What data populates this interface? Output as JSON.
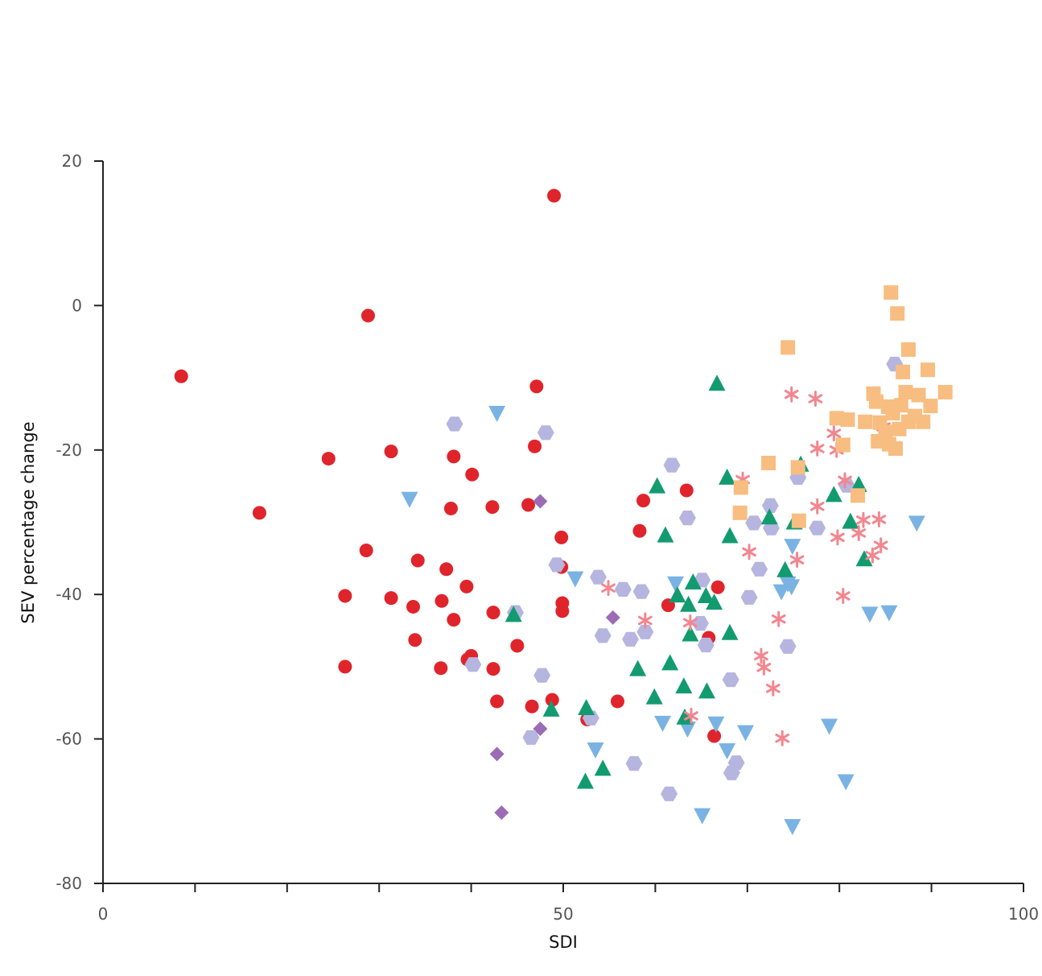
{
  "chart_data": {
    "type": "scatter",
    "title": "",
    "xlabel": "SDI",
    "ylabel": "SEV percentage change",
    "xlim": [
      0,
      100
    ],
    "ylim": [
      -80,
      20
    ],
    "x_tick_labels": [
      "0",
      "50",
      "100"
    ],
    "y_tick_labels": [
      "20",
      "0",
      "-20",
      "-40",
      "-60",
      "-80"
    ],
    "grid": false,
    "legend": "none",
    "series": [
      {
        "marker": "circle",
        "color": "#e0242b",
        "points": [
          [
            8.5,
            -9.8
          ],
          [
            17,
            -28.7
          ],
          [
            24.5,
            -21.2
          ],
          [
            26.3,
            -40.2
          ],
          [
            26.3,
            -50
          ],
          [
            28.6,
            -33.9
          ],
          [
            28.8,
            -1.4
          ],
          [
            31.3,
            -20.2
          ],
          [
            31.3,
            -40.5
          ],
          [
            33.7,
            -41.7
          ],
          [
            33.9,
            -46.3
          ],
          [
            34.2,
            -35.3
          ],
          [
            36.7,
            -50.2
          ],
          [
            36.8,
            -40.9
          ],
          [
            37.3,
            -36.5
          ],
          [
            37.8,
            -28.1
          ],
          [
            38.1,
            -20.9
          ],
          [
            38.1,
            -43.5
          ],
          [
            39.5,
            -38.9
          ],
          [
            39.6,
            -49
          ],
          [
            40,
            -48.5
          ],
          [
            40.1,
            -23.4
          ],
          [
            42.3,
            -27.9
          ],
          [
            42.4,
            -50.3
          ],
          [
            42.4,
            -42.5
          ],
          [
            42.8,
            -54.8
          ],
          [
            45,
            -47.1
          ],
          [
            46.2,
            -27.6
          ],
          [
            46.6,
            -55.5
          ],
          [
            46.9,
            -19.5
          ],
          [
            47.1,
            -11.2
          ],
          [
            48.8,
            -54.6
          ],
          [
            49,
            15.2
          ],
          [
            49.8,
            -32.1
          ],
          [
            49.8,
            -36.2
          ],
          [
            49.9,
            -41.2
          ],
          [
            49.9,
            -42.3
          ],
          [
            52.6,
            -57.3
          ],
          [
            55.9,
            -54.8
          ],
          [
            58.3,
            -31.2
          ],
          [
            58.7,
            -27
          ],
          [
            61.4,
            -41.5
          ],
          [
            63.4,
            -25.6
          ],
          [
            65.8,
            -46
          ],
          [
            66.4,
            -59.6
          ],
          [
            66.8,
            -39
          ]
        ]
      },
      {
        "marker": "diamond",
        "color": "#9b6bb5",
        "points": [
          [
            42.8,
            -62.1
          ],
          [
            43.3,
            -70.2
          ],
          [
            47.5,
            -27.1
          ],
          [
            47.5,
            -58.6
          ],
          [
            55.4,
            -43.2
          ]
        ]
      },
      {
        "marker": "hexagon",
        "color": "#b5b5e0",
        "points": [
          [
            38.2,
            -16.4
          ],
          [
            40.2,
            -49.7
          ],
          [
            44.8,
            -42.5
          ],
          [
            46.5,
            -59.8
          ],
          [
            47.7,
            -51.2
          ],
          [
            48.1,
            -17.6
          ],
          [
            49.3,
            -35.9
          ],
          [
            53,
            -57.1
          ],
          [
            53.8,
            -37.6
          ],
          [
            54.3,
            -45.7
          ],
          [
            56.5,
            -39.3
          ],
          [
            57.3,
            -46.2
          ],
          [
            57.7,
            -63.4
          ],
          [
            58.5,
            -39.6
          ],
          [
            58.9,
            -45.2
          ],
          [
            61.5,
            -67.6
          ],
          [
            61.8,
            -22.1
          ],
          [
            63.5,
            -29.4
          ],
          [
            64.9,
            -44
          ],
          [
            65.1,
            -38
          ],
          [
            65.5,
            -47
          ],
          [
            68.2,
            -51.8
          ],
          [
            68.3,
            -64.7
          ],
          [
            68.8,
            -63.3
          ],
          [
            70.2,
            -40.4
          ],
          [
            70.7,
            -30.1
          ],
          [
            71.3,
            -36.5
          ],
          [
            72.5,
            -27.7
          ],
          [
            72.6,
            -30.8
          ],
          [
            74.4,
            -47.2
          ],
          [
            75.5,
            -23.8
          ],
          [
            77.6,
            -30.8
          ],
          [
            80.8,
            -24.9
          ],
          [
            86,
            -8.1
          ]
        ]
      },
      {
        "marker": "triangle-down",
        "color": "#7ab3e3",
        "points": [
          [
            33.3,
            -26.8
          ],
          [
            42.8,
            -14.9
          ],
          [
            51.3,
            -37.8
          ],
          [
            53.5,
            -61.5
          ],
          [
            60.8,
            -57.8
          ],
          [
            62.2,
            -38.5
          ],
          [
            63.5,
            -58.6
          ],
          [
            65.1,
            -70.6
          ],
          [
            66.6,
            -57.9
          ],
          [
            67.8,
            -61.6
          ],
          [
            69.8,
            -59.1
          ],
          [
            73.7,
            -39.6
          ],
          [
            74.4,
            -38.5
          ],
          [
            74.8,
            -38.9
          ],
          [
            74.9,
            -33.3
          ],
          [
            74.9,
            -72.1
          ],
          [
            78.9,
            -58.2
          ],
          [
            80.7,
            -65.9
          ],
          [
            83.3,
            -42.7
          ],
          [
            85.4,
            -42.5
          ],
          [
            88.4,
            -30.1
          ]
        ]
      },
      {
        "marker": "triangle-up",
        "color": "#139b70",
        "points": [
          [
            44.6,
            -42.8
          ],
          [
            48.7,
            -55.9
          ],
          [
            52.4,
            -65.9
          ],
          [
            52.5,
            -55.7
          ],
          [
            54.3,
            -64.1
          ],
          [
            58.1,
            -50.3
          ],
          [
            59.9,
            -54.2
          ],
          [
            60.2,
            -25
          ],
          [
            61.1,
            -31.8
          ],
          [
            61.6,
            -49.5
          ],
          [
            62.4,
            -40.1
          ],
          [
            63.1,
            -52.7
          ],
          [
            63.2,
            -57
          ],
          [
            63.6,
            -41.4
          ],
          [
            63.8,
            -45.5
          ],
          [
            64.1,
            -38.3
          ],
          [
            65.5,
            -40.2
          ],
          [
            65.6,
            -53.4
          ],
          [
            66.4,
            -41.1
          ],
          [
            66.7,
            -10.8
          ],
          [
            67.8,
            -23.8
          ],
          [
            68.1,
            -31.9
          ],
          [
            68.1,
            -45.3
          ],
          [
            72.4,
            -29.3
          ],
          [
            74.1,
            -36.6
          ],
          [
            75.1,
            -30
          ],
          [
            75.8,
            -22
          ],
          [
            79.4,
            -26.2
          ],
          [
            81.2,
            -29.9
          ],
          [
            82.1,
            -24.8
          ],
          [
            82.7,
            -35.1
          ]
        ]
      },
      {
        "marker": "asterisk",
        "color": "#f2868f",
        "points": [
          [
            54.9,
            -39.1
          ],
          [
            58.9,
            -43.6
          ],
          [
            63.8,
            -43.9
          ],
          [
            63.9,
            -56.8
          ],
          [
            69.5,
            -24.1
          ],
          [
            70.2,
            -34.1
          ],
          [
            71.5,
            -48.5
          ],
          [
            71.8,
            -50.1
          ],
          [
            72.8,
            -53
          ],
          [
            73.4,
            -43.4
          ],
          [
            73.8,
            -59.9
          ],
          [
            74.8,
            -12.3
          ],
          [
            75.4,
            -35.2
          ],
          [
            77.4,
            -12.9
          ],
          [
            77.6,
            -19.8
          ],
          [
            77.6,
            -27.8
          ],
          [
            79.4,
            -17.7
          ],
          [
            79.7,
            -20
          ],
          [
            79.8,
            -32.1
          ],
          [
            80.4,
            -40.2
          ],
          [
            80.6,
            -24.2
          ],
          [
            82.1,
            -31.5
          ],
          [
            82.6,
            -29.7
          ],
          [
            83.6,
            -34.6
          ],
          [
            84.3,
            -29.6
          ],
          [
            84.5,
            -33.2
          ],
          [
            84.8,
            -16.8
          ]
        ]
      },
      {
        "marker": "square",
        "color": "#f8bd80",
        "points": [
          [
            69.2,
            -28.7
          ],
          [
            69.3,
            -25.2
          ],
          [
            72.3,
            -21.8
          ],
          [
            74.4,
            -5.8
          ],
          [
            75.5,
            -22.4
          ],
          [
            75.6,
            -29.8
          ],
          [
            79.7,
            -15.6
          ],
          [
            80.4,
            -19.3
          ],
          [
            80.9,
            -15.8
          ],
          [
            82,
            -26.3
          ],
          [
            82.8,
            -16.1
          ],
          [
            83.7,
            -12.2
          ],
          [
            84,
            -13.3
          ],
          [
            84.2,
            -18.8
          ],
          [
            84.4,
            -16.2
          ],
          [
            85,
            -17.5
          ],
          [
            85.3,
            -14
          ],
          [
            85.4,
            -19.2
          ],
          [
            85.6,
            1.8
          ],
          [
            85.8,
            -14.9
          ],
          [
            86.1,
            -19.8
          ],
          [
            86.3,
            -1.1
          ],
          [
            86.5,
            -17.1
          ],
          [
            86.7,
            -13.8
          ],
          [
            86.9,
            -9.2
          ],
          [
            87.2,
            -12
          ],
          [
            87.5,
            -6.1
          ],
          [
            87.5,
            -16.1
          ],
          [
            88.2,
            -15.3
          ],
          [
            88.6,
            -12.4
          ],
          [
            89.1,
            -16.1
          ],
          [
            89.6,
            -8.9
          ],
          [
            89.9,
            -13.9
          ],
          [
            91.5,
            -12
          ]
        ]
      }
    ]
  }
}
